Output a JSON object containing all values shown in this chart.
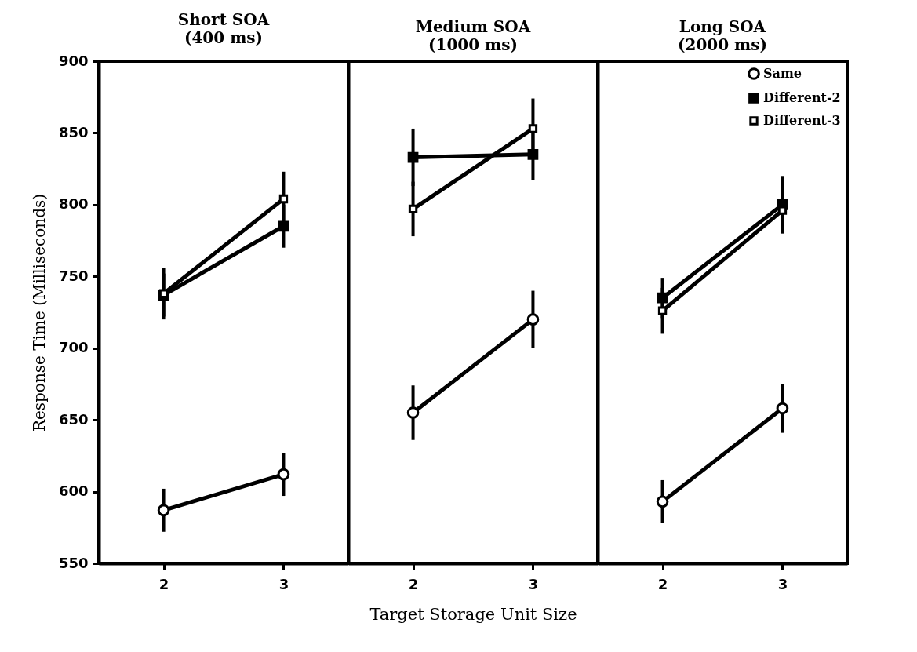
{
  "chart_data": [
    {
      "type": "line",
      "title": "Short SOA",
      "subtitle": "(400 ms)",
      "ylabel": "Response Time (Milliseconds)",
      "categories": [
        "2",
        "3"
      ],
      "ylim": [
        550,
        900
      ],
      "yticks": [
        550,
        600,
        650,
        700,
        750,
        800,
        850,
        900
      ],
      "grid": false,
      "line_style": "solid",
      "series": [
        {
          "color": "#000000",
          "marker": "circle",
          "values": [
            587,
            612
          ],
          "errors": [
            15,
            15
          ]
        },
        {
          "color": "#000000",
          "marker": "square",
          "values": [
            737,
            785
          ],
          "errors": [
            15,
            15
          ]
        },
        {
          "color": "#000000",
          "marker": "square",
          "values": [
            738,
            804
          ],
          "errors": [
            18,
            19
          ]
        }
      ]
    },
    {
      "type": "line",
      "title": "Medium SOA",
      "subtitle": "(1000 ms)",
      "xlabel": "Target Storage Unit Size",
      "categories": [
        "2",
        "3"
      ],
      "ylim": [
        550,
        900
      ],
      "yticks": [
        550,
        600,
        650,
        700,
        750,
        800,
        850,
        900
      ],
      "tick_labels": "x",
      "grid": false,
      "line_style": "solid",
      "series": [
        {
          "color": "#000000",
          "marker": "circle",
          "values": [
            655,
            720
          ],
          "errors": [
            19,
            20
          ]
        },
        {
          "color": "#000000",
          "marker": "square",
          "values": [
            833,
            835
          ],
          "errors": [
            20,
            18
          ]
        },
        {
          "color": "#000000",
          "marker": "square",
          "values": [
            797,
            853
          ],
          "errors": [
            19,
            21
          ]
        }
      ]
    },
    {
      "type": "line",
      "title": "Long SOA",
      "subtitle": "(2000 ms)",
      "categories": [
        "2",
        "3"
      ],
      "ylim": [
        550,
        900
      ],
      "yticks": [
        550,
        600,
        650,
        700,
        750,
        800,
        850,
        900
      ],
      "tick_labels": "x",
      "grid": false,
      "legend": "top right",
      "line_style": "solid",
      "series": [
        {
          "name": "Same",
          "color": "#000000",
          "marker": "circle",
          "values": [
            593,
            658
          ],
          "errors": [
            15,
            17
          ]
        },
        {
          "name": "Different-2",
          "color": "#000000",
          "marker": "square",
          "values": [
            735,
            800
          ],
          "errors": [
            14,
            20
          ]
        },
        {
          "name": "Different-3",
          "color": "#000000",
          "marker": "square",
          "values": [
            726,
            796
          ],
          "errors": [
            16,
            16
          ]
        }
      ]
    }
  ]
}
